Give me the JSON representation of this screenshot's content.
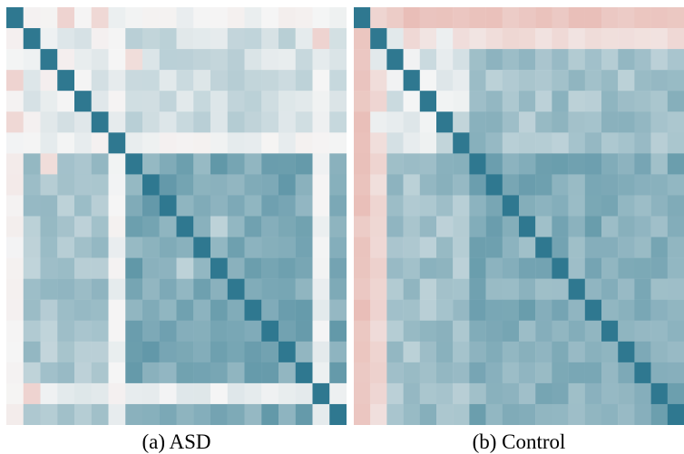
{
  "chart_data": [
    {
      "type": "heatmap",
      "caption": "(a) ASD",
      "size": 20,
      "value_range": [
        -1,
        1
      ],
      "colors": {
        "negative": "#e0958a",
        "neutral": "#f5f5f5",
        "positive": "#3a7f94",
        "diagonal": "#2f7890"
      },
      "blocks": [
        {
          "rows": [
            0,
            6
          ],
          "cols": [
            0,
            6
          ],
          "value": 0.05
        },
        {
          "rows": [
            0,
            6
          ],
          "cols": [
            7,
            19
          ],
          "value": 0.2
        },
        {
          "rows": [
            7,
            19
          ],
          "cols": [
            7,
            19
          ],
          "value": 0.65
        },
        {
          "rows": [
            7,
            19
          ],
          "cols": [
            0,
            6
          ],
          "value": 0.4
        }
      ],
      "row_overrides": [
        {
          "index": 0,
          "value": 0.0
        },
        {
          "index": 6,
          "value": 0.02
        },
        {
          "index": 18,
          "value": 0.05
        }
      ],
      "col_overrides": [
        {
          "index": 0,
          "value": -0.05
        },
        {
          "index": 6,
          "value": 0.02
        },
        {
          "index": 18,
          "value": 0.05
        }
      ],
      "cells": [
        {
          "r": 3,
          "c": 0,
          "value": -0.35
        },
        {
          "r": 5,
          "c": 0,
          "value": -0.3
        },
        {
          "r": 0,
          "c": 3,
          "value": -0.35
        },
        {
          "r": 0,
          "c": 5,
          "value": -0.3
        },
        {
          "r": 18,
          "c": 1,
          "value": -0.35
        },
        {
          "r": 1,
          "c": 18,
          "value": -0.35
        },
        {
          "r": 7,
          "c": 2,
          "value": -0.25
        },
        {
          "r": 2,
          "c": 7,
          "value": -0.25
        },
        {
          "r": 12,
          "c": 10,
          "value": 0.3
        },
        {
          "r": 10,
          "c": 12,
          "value": 0.3
        }
      ]
    },
    {
      "type": "heatmap",
      "caption": "(b) Control",
      "size": 20,
      "value_range": [
        -1,
        1
      ],
      "colors": {
        "negative": "#e0958a",
        "neutral": "#f5f5f5",
        "positive": "#3a7f94",
        "diagonal": "#2f7890"
      },
      "blocks": [
        {
          "rows": [
            0,
            6
          ],
          "cols": [
            0,
            6
          ],
          "value": 0.15
        },
        {
          "rows": [
            0,
            6
          ],
          "cols": [
            7,
            19
          ],
          "value": 0.45
        },
        {
          "rows": [
            7,
            19
          ],
          "cols": [
            7,
            19
          ],
          "value": 0.6
        },
        {
          "rows": [
            7,
            19
          ],
          "cols": [
            0,
            6
          ],
          "value": 0.45
        }
      ],
      "row_overrides": [
        {
          "index": 0,
          "value": -0.5
        },
        {
          "index": 1,
          "value": -0.25
        }
      ],
      "col_overrides": [
        {
          "index": 0,
          "value": -0.5
        },
        {
          "index": 1,
          "value": -0.3
        }
      ],
      "cells": [
        {
          "r": 1,
          "c": 2,
          "value": 0.1
        },
        {
          "r": 2,
          "c": 1,
          "value": 0.1
        },
        {
          "r": 1,
          "c": 5,
          "value": 0.05
        },
        {
          "r": 5,
          "c": 1,
          "value": 0.05
        }
      ]
    }
  ]
}
